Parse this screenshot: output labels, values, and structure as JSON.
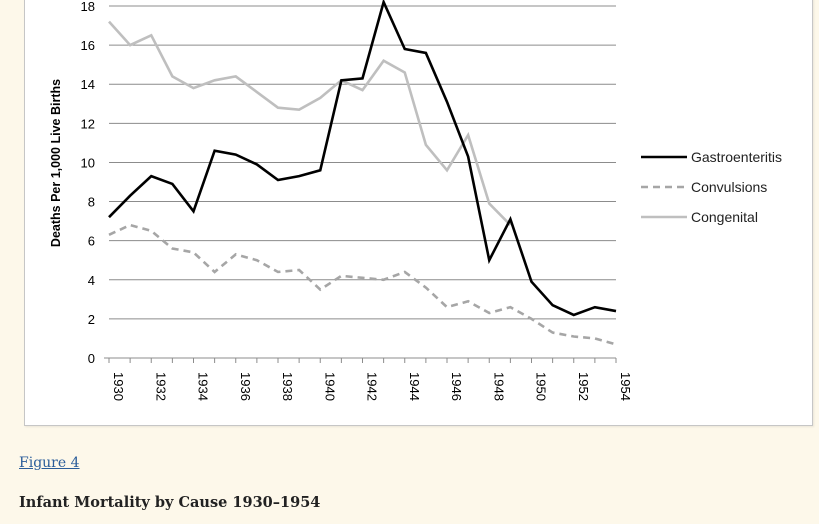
{
  "figure": {
    "link_label": "Figure 4",
    "caption": "Infant Mortality by Cause 1930–1954"
  },
  "colors": {
    "gastroenteritis": "#000000",
    "convulsions": "#a6a6a6",
    "congenital": "#bfbfbf",
    "grid": "#8c8c8c",
    "page_background": "#fdf8ea"
  },
  "chart_data": {
    "type": "line",
    "title": "",
    "xlabel": "",
    "ylabel": "Deaths Per 1,000 Live Births",
    "ylim": [
      0,
      18
    ],
    "xlim": [
      1930,
      1954
    ],
    "grid": "horizontal",
    "legend_position": "right",
    "yticks": [
      "0",
      "2",
      "4",
      "6",
      "8",
      "10",
      "12",
      "14",
      "16",
      "18"
    ],
    "xticks": [
      "1930",
      "1932",
      "1934",
      "1936",
      "1938",
      "1940",
      "1942",
      "1944",
      "1946",
      "1948",
      "1950",
      "1952",
      "1954"
    ],
    "x": [
      1930,
      1931,
      1932,
      1933,
      1934,
      1935,
      1936,
      1937,
      1938,
      1939,
      1940,
      1941,
      1942,
      1943,
      1944,
      1945,
      1946,
      1947,
      1948,
      1949,
      1950,
      1951,
      1952,
      1953,
      1954
    ],
    "series": [
      {
        "name": "Gastroenteritis",
        "style": "solid",
        "values": [
          7.2,
          8.3,
          9.3,
          8.9,
          7.5,
          10.6,
          10.4,
          9.9,
          9.1,
          9.3,
          9.6,
          14.2,
          14.3,
          18.2,
          15.8,
          15.6,
          13.1,
          10.3,
          5.0,
          7.1,
          3.9,
          2.7,
          2.2,
          2.6,
          2.4
        ]
      },
      {
        "name": "Convulsions",
        "style": "dashed",
        "values": [
          6.3,
          6.8,
          6.5,
          5.6,
          5.4,
          4.4,
          5.3,
          5.0,
          4.4,
          4.5,
          3.5,
          4.2,
          4.1,
          4.0,
          4.4,
          3.6,
          2.6,
          2.9,
          2.3,
          2.6,
          2.0,
          1.3,
          1.1,
          1.0,
          0.7
        ]
      },
      {
        "name": "Congenital",
        "style": "solid",
        "values": [
          17.2,
          16.0,
          16.5,
          14.4,
          13.8,
          14.2,
          14.4,
          13.6,
          12.8,
          12.7,
          13.3,
          14.2,
          13.7,
          15.2,
          14.6,
          10.9,
          9.6,
          11.4,
          7.9,
          6.8,
          null,
          null,
          null,
          null,
          null
        ]
      }
    ]
  }
}
